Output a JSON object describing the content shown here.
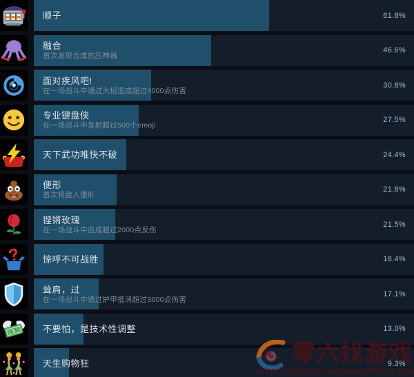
{
  "colors": {
    "row_background": "#141e2a",
    "progress_fill": "#1f4f6b",
    "icon_column_background": "#020203",
    "percent_text": "#9fbccf",
    "title_text": "#dde2e6",
    "description_text": "#7e8c98",
    "watermark_text": "#4d1119"
  },
  "achievements": [
    {
      "icon": "slot-machine",
      "title": "顺子",
      "desc": "",
      "percent": "61.8%"
    },
    {
      "icon": "octopus",
      "title": "融合",
      "desc": "首次发现合成抗压神器",
      "percent": "46.6%"
    },
    {
      "icon": "cyclone",
      "title": "面对疾风吧!",
      "desc": "在一场战斗中通过大招造成超过4000点伤害",
      "percent": "30.8%"
    },
    {
      "icon": "smiley-face",
      "title": "专业键盘侠",
      "desc": "在一场战斗中发射超过500个emoji",
      "percent": "27.5%"
    },
    {
      "icon": "lightning-glove",
      "title": "天下武功唯快不破",
      "desc": "",
      "percent": "24.4%"
    },
    {
      "icon": "poop",
      "title": "便形",
      "desc": "首次将敌人便形",
      "percent": "21.8%"
    },
    {
      "icon": "rose",
      "title": "铿锵玫瑰",
      "desc": "在一场战斗中造成超过2000点反伤",
      "percent": "21.5%"
    },
    {
      "icon": "question-box",
      "title": "惊呼不可战胜",
      "desc": "",
      "percent": "18.4%"
    },
    {
      "icon": "shield",
      "title": "耸肩，过",
      "desc": "在一场战斗中通过护甲抵消超过3000点伤害",
      "percent": "17.1%"
    },
    {
      "icon": "money-with-wings",
      "title": "不要怕，是技术性调整",
      "desc": "",
      "percent": "13.0%"
    },
    {
      "icon": "dancers",
      "title": "天生购物狂",
      "desc": "",
      "percent": "9.3%"
    }
  ],
  "watermark": {
    "site_name": "零六找游戏",
    "url_left": "www.lingliuyx.com",
    "url_right": "www.06zyz.com"
  }
}
